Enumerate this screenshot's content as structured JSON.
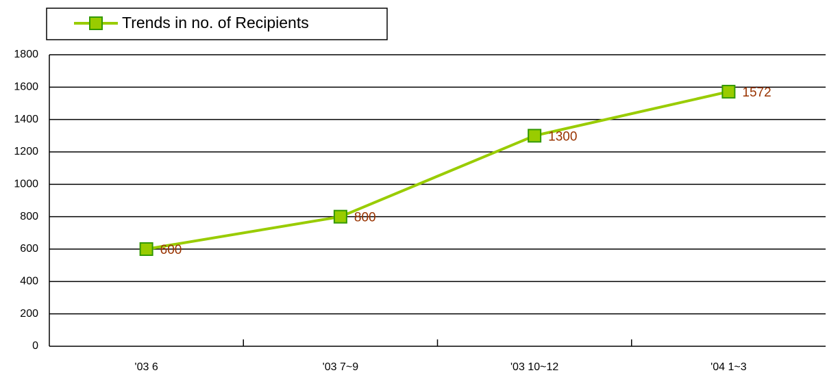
{
  "chart_data": {
    "type": "line",
    "categories": [
      "'03 6",
      "'03 7~9",
      "'03 10~12",
      "'04 1~3"
    ],
    "series": [
      {
        "name": "Trends in no. of Recipients",
        "color": "#99cc00",
        "values": [
          600,
          800,
          1300,
          1572
        ]
      }
    ],
    "ylim": [
      0,
      1800
    ],
    "yticks": [
      0,
      200,
      400,
      600,
      800,
      1000,
      1200,
      1400,
      1600,
      1800
    ],
    "grid": true,
    "legend": "top-left"
  }
}
